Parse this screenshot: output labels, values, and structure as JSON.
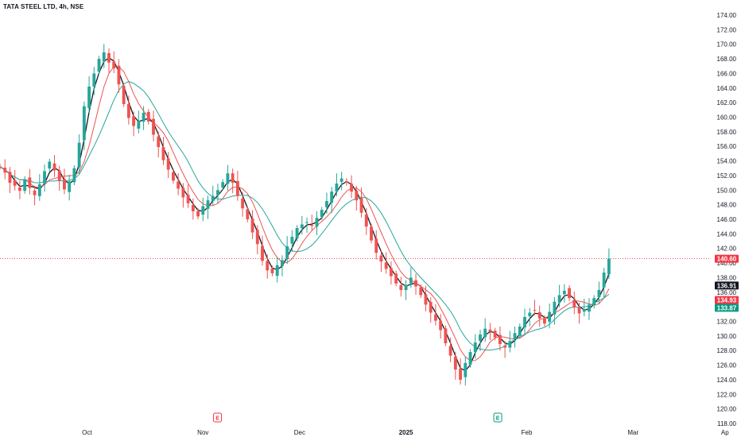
{
  "header": {
    "title": "TATA STEEL LTD, 4h, NSE"
  },
  "colors": {
    "up": "#26a69a",
    "down": "#ef5350",
    "ma_fast": "#131722",
    "ma_mid": "#ef5350",
    "ma_slow": "#26a69a",
    "last_price_tag": "#f23645",
    "ma_fast_tag": "#131722",
    "ma_mid_tag": "#f23645",
    "ma_slow_tag": "#089981"
  },
  "chart_data": {
    "type": "candlestick",
    "title": "TATA STEEL LTD, 4h, NSE",
    "y_axis": {
      "min": 118,
      "max": 174,
      "ticks": [
        "174.00",
        "172.00",
        "170.00",
        "168.00",
        "166.00",
        "164.00",
        "162.00",
        "160.00",
        "158.00",
        "156.00",
        "154.00",
        "152.00",
        "150.00",
        "148.00",
        "146.00",
        "144.00",
        "142.00",
        "140.00",
        "138.00",
        "136.00",
        "134.00",
        "132.00",
        "130.00",
        "128.00",
        "126.00",
        "124.00",
        "122.00",
        "120.00",
        "118.00"
      ]
    },
    "x_axis": {
      "ticks": [
        {
          "label": "Oct",
          "index": 18
        },
        {
          "label": "Nov",
          "index": 42
        },
        {
          "label": "Dec",
          "index": 62
        },
        {
          "label": "2025",
          "index": 84
        },
        {
          "label": "Feb",
          "index": 109
        },
        {
          "label": "Mar",
          "index": 131
        },
        {
          "label": "Ap",
          "index": 150
        }
      ]
    },
    "index_range": [
      0,
      153
    ],
    "earnings_markers": [
      {
        "label": "E",
        "index": 45,
        "color": "#f23645"
      },
      {
        "label": "E",
        "index": 103,
        "color": "#089981"
      }
    ],
    "candles": [],
    "closes": [
      153.2,
      152.4,
      151.0,
      150.6,
      149.9,
      151.5,
      150.3,
      149.3,
      150.8,
      152.6,
      153.9,
      152.7,
      151.3,
      150.1,
      151.2,
      153.0,
      156.5,
      161.5,
      164.2,
      166.0,
      168.0,
      168.9,
      167.5,
      166.7,
      164.5,
      161.8,
      159.9,
      158.8,
      159.5,
      160.6,
      159.4,
      157.6,
      155.9,
      154.1,
      152.8,
      151.3,
      150.2,
      149.0,
      148.2,
      147.1,
      146.4,
      147.8,
      148.6,
      149.2,
      150.0,
      151.1,
      152.3,
      151.0,
      149.2,
      147.5,
      146.0,
      144.2,
      142.6,
      140.3,
      139.0,
      138.6,
      139.7,
      140.4,
      142.3,
      143.6,
      144.8,
      145.3,
      145.6,
      145.1,
      146.2,
      147.3,
      148.5,
      149.8,
      150.9,
      151.6,
      151.0,
      149.8,
      148.6,
      146.9,
      145.0,
      143.1,
      141.4,
      140.2,
      139.2,
      138.2,
      137.2,
      136.3,
      137.0,
      138.0,
      136.8,
      135.6,
      134.3,
      133.2,
      132.1,
      130.8,
      129.0,
      127.3,
      125.4,
      124.0,
      126.3,
      127.8,
      129.1,
      130.2,
      131.0,
      130.6,
      129.8,
      128.9,
      128.4,
      129.3,
      130.4,
      131.3,
      132.6,
      133.2,
      133.5,
      132.4,
      131.7,
      133.3,
      134.7,
      135.6,
      136.2,
      135.2,
      133.9,
      133.1,
      133.7,
      134.3,
      135.2,
      136.3,
      138.7,
      140.6
    ],
    "last_price": "140.60",
    "moving_averages": [
      {
        "value": "136.91"
      },
      {
        "value": "134.93"
      },
      {
        "value": "133.87"
      }
    ]
  }
}
